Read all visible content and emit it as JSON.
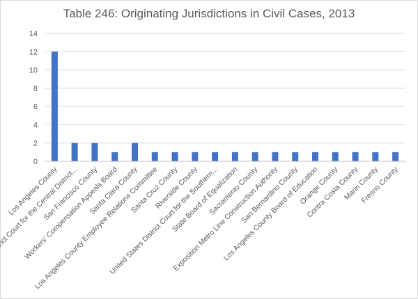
{
  "chart_data": {
    "type": "bar",
    "title": "Table 246: Originating Jurisdictions in Civil Cases, 2013",
    "xlabel": "",
    "ylabel": "",
    "ylim": [
      0,
      14
    ],
    "yticks": [
      0,
      2,
      4,
      6,
      8,
      10,
      12,
      14
    ],
    "grid": true,
    "legend": "none",
    "bar_color": "#4472c4",
    "categories": [
      "Los Angeles County",
      "District Court for the Central District...",
      "San Francisco County",
      "Workers' Compensation Appeals Board",
      "Santa Clara County",
      "Los Angeles County Employee Relations Committee",
      "Santa Cruz County",
      "Riverside County",
      "United States District Court for the Southern...",
      "State Board of Equalization",
      "Sacramento County",
      "Exposition Metro Line Construction Authority",
      "San Bernardino County",
      "Los Angeles County Board of Education",
      "Orange County",
      "Contra Costa County",
      "Marin County",
      "Fresno County"
    ],
    "values": [
      12,
      2,
      2,
      1,
      2,
      1,
      1,
      1,
      1,
      1,
      1,
      1,
      1,
      1,
      1,
      1,
      1,
      1
    ]
  }
}
